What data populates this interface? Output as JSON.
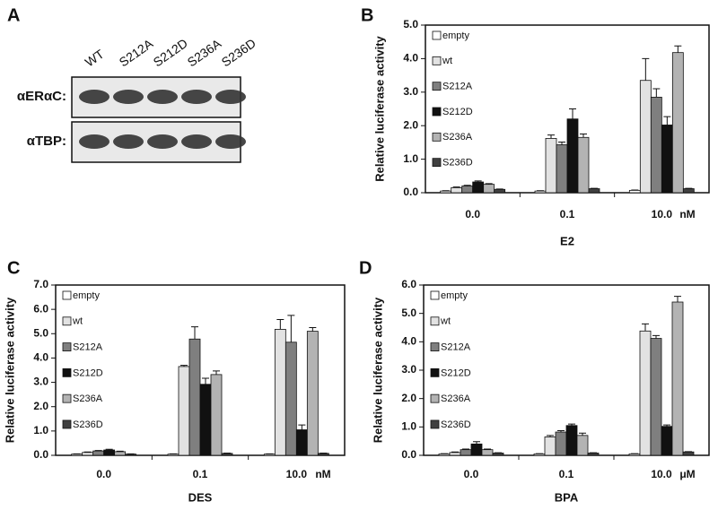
{
  "blot": {
    "panel": "A",
    "lanes": [
      "WT",
      "S212A",
      "S212D",
      "S236A",
      "S236D"
    ],
    "rows": [
      "αERαC:",
      "αTBP:"
    ]
  },
  "chart_data": [
    {
      "type": "bar",
      "panel": "B",
      "y_label": "Relative luciferase activity",
      "x_label": "E2",
      "unit": "nM",
      "categories": [
        "0.0",
        "0.1",
        "10.0"
      ],
      "ylim": [
        0,
        5
      ],
      "yticks": [
        {
          "value": 0,
          "label": "0.0"
        },
        {
          "value": 1,
          "label": "1.0"
        },
        {
          "value": 2,
          "label": "2.0"
        },
        {
          "value": 3,
          "label": "3.0"
        },
        {
          "value": 4,
          "label": "4.0"
        },
        {
          "value": 5,
          "label": "5.0"
        }
      ],
      "series": [
        {
          "name": "empty",
          "color": "#ffffff",
          "values": [
            0.05,
            0.05,
            0.07
          ],
          "errors": [
            0.01,
            0.01,
            0.01
          ]
        },
        {
          "name": "wt",
          "color": "#e2e2e2",
          "values": [
            0.15,
            1.62,
            3.35
          ],
          "errors": [
            0.02,
            0.1,
            0.65
          ]
        },
        {
          "name": "S212A",
          "color": "#7f7f7f",
          "values": [
            0.2,
            1.43,
            2.85
          ],
          "errors": [
            0.02,
            0.08,
            0.25
          ]
        },
        {
          "name": "S212D",
          "color": "#111111",
          "values": [
            0.32,
            2.2,
            2.02
          ],
          "errors": [
            0.03,
            0.3,
            0.25
          ]
        },
        {
          "name": "S236A",
          "color": "#b3b3b3",
          "values": [
            0.25,
            1.65,
            4.18
          ],
          "errors": [
            0.02,
            0.1,
            0.2
          ]
        },
        {
          "name": "S236D",
          "color": "#404040",
          "values": [
            0.1,
            0.12,
            0.12
          ],
          "errors": [
            0.01,
            0.01,
            0.01
          ]
        }
      ]
    },
    {
      "type": "bar",
      "panel": "C",
      "y_label": "Relative luciferase activity",
      "x_label": "DES",
      "unit": "nM",
      "categories": [
        "0.0",
        "0.1",
        "10.0"
      ],
      "ylim": [
        0,
        7
      ],
      "yticks": [
        {
          "value": 0,
          "label": "0.0"
        },
        {
          "value": 1,
          "label": "1.0"
        },
        {
          "value": 2,
          "label": "2.0"
        },
        {
          "value": 3,
          "label": "3.0"
        },
        {
          "value": 4,
          "label": "4.0"
        },
        {
          "value": 5,
          "label": "5.0"
        },
        {
          "value": 6,
          "label": "6.0"
        },
        {
          "value": 7,
          "label": "7.0"
        }
      ],
      "series": [
        {
          "name": "empty",
          "color": "#ffffff",
          "values": [
            0.05,
            0.05,
            0.05
          ],
          "errors": [
            0.01,
            0.01,
            0.01
          ]
        },
        {
          "name": "wt",
          "color": "#e2e2e2",
          "values": [
            0.12,
            3.65,
            5.18
          ],
          "errors": [
            0.02,
            0.05,
            0.4
          ]
        },
        {
          "name": "S212A",
          "color": "#7f7f7f",
          "values": [
            0.18,
            4.78,
            4.65
          ],
          "errors": [
            0.02,
            0.5,
            1.1
          ]
        },
        {
          "name": "S212D",
          "color": "#111111",
          "values": [
            0.22,
            2.92,
            1.05
          ],
          "errors": [
            0.03,
            0.25,
            0.2
          ]
        },
        {
          "name": "S236A",
          "color": "#b3b3b3",
          "values": [
            0.15,
            3.32,
            5.1
          ],
          "errors": [
            0.02,
            0.15,
            0.15
          ]
        },
        {
          "name": "S236D",
          "color": "#404040",
          "values": [
            0.05,
            0.08,
            0.08
          ],
          "errors": [
            0.01,
            0.01,
            0.01
          ]
        }
      ]
    },
    {
      "type": "bar",
      "panel": "D",
      "y_label": "Relative luciferase activity",
      "x_label": "BPA",
      "unit": "μM",
      "categories": [
        "0.0",
        "0.1",
        "10.0"
      ],
      "ylim": [
        0,
        6
      ],
      "yticks": [
        {
          "value": 0,
          "label": "0.0"
        },
        {
          "value": 1,
          "label": "1.0"
        },
        {
          "value": 2,
          "label": "2.0"
        },
        {
          "value": 3,
          "label": "3.0"
        },
        {
          "value": 4,
          "label": "4.0"
        },
        {
          "value": 5,
          "label": "5.0"
        },
        {
          "value": 6,
          "label": "6.0"
        }
      ],
      "series": [
        {
          "name": "empty",
          "color": "#ffffff",
          "values": [
            0.05,
            0.05,
            0.05
          ],
          "errors": [
            0.01,
            0.01,
            0.01
          ]
        },
        {
          "name": "wt",
          "color": "#e2e2e2",
          "values": [
            0.1,
            0.65,
            4.38
          ],
          "errors": [
            0.02,
            0.05,
            0.25
          ]
        },
        {
          "name": "S212A",
          "color": "#7f7f7f",
          "values": [
            0.2,
            0.82,
            4.12
          ],
          "errors": [
            0.02,
            0.05,
            0.1
          ]
        },
        {
          "name": "S212D",
          "color": "#111111",
          "values": [
            0.4,
            1.05,
            1.02
          ],
          "errors": [
            0.08,
            0.05,
            0.05
          ]
        },
        {
          "name": "S236A",
          "color": "#b3b3b3",
          "values": [
            0.2,
            0.7,
            5.4
          ],
          "errors": [
            0.02,
            0.08,
            0.2
          ]
        },
        {
          "name": "S236D",
          "color": "#404040",
          "values": [
            0.08,
            0.08,
            0.12
          ],
          "errors": [
            0.01,
            0.01,
            0.01
          ]
        }
      ]
    }
  ]
}
